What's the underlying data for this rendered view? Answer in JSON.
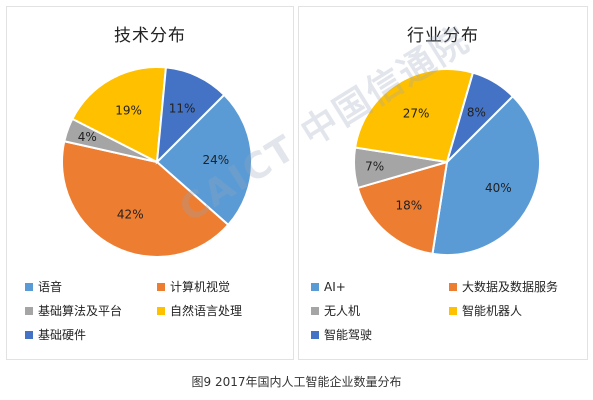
{
  "caption": "图9 2017年国内人工智能企业数量分布",
  "watermark": "CAICT 中国信通院",
  "colors": {
    "blue_light": "#5b9bd5",
    "orange": "#ed7d31",
    "gray": "#a5a5a5",
    "yellow": "#ffc000",
    "blue_dark": "#4472c4"
  },
  "chart_data": [
    {
      "type": "pie",
      "title": "技术分布",
      "slices": [
        {
          "label": "语音",
          "value": 24,
          "display": "24%",
          "color": "#5b9bd5"
        },
        {
          "label": "计算机视觉",
          "value": 42,
          "display": "42%",
          "color": "#ed7d31"
        },
        {
          "label": "基础算法及平台",
          "value": 4,
          "display": "4%",
          "color": "#a5a5a5"
        },
        {
          "label": "自然语言处理",
          "value": 19,
          "display": "19%",
          "color": "#ffc000"
        },
        {
          "label": "基础硬件",
          "value": 11,
          "display": "11%",
          "color": "#4472c4"
        }
      ],
      "legend_position": "bottom"
    },
    {
      "type": "pie",
      "title": "行业分布",
      "slices": [
        {
          "label": "AI+",
          "value": 40,
          "display": "40%",
          "color": "#5b9bd5"
        },
        {
          "label": "大数据及数据服务",
          "value": 18,
          "display": "18%",
          "color": "#ed7d31"
        },
        {
          "label": "无人机",
          "value": 7,
          "display": "7%",
          "color": "#a5a5a5"
        },
        {
          "label": "智能机器人",
          "value": 27,
          "display": "27%",
          "color": "#ffc000"
        },
        {
          "label": "智能驾驶",
          "value": 8,
          "display": "8%",
          "color": "#4472c4"
        }
      ],
      "legend_position": "bottom"
    }
  ]
}
